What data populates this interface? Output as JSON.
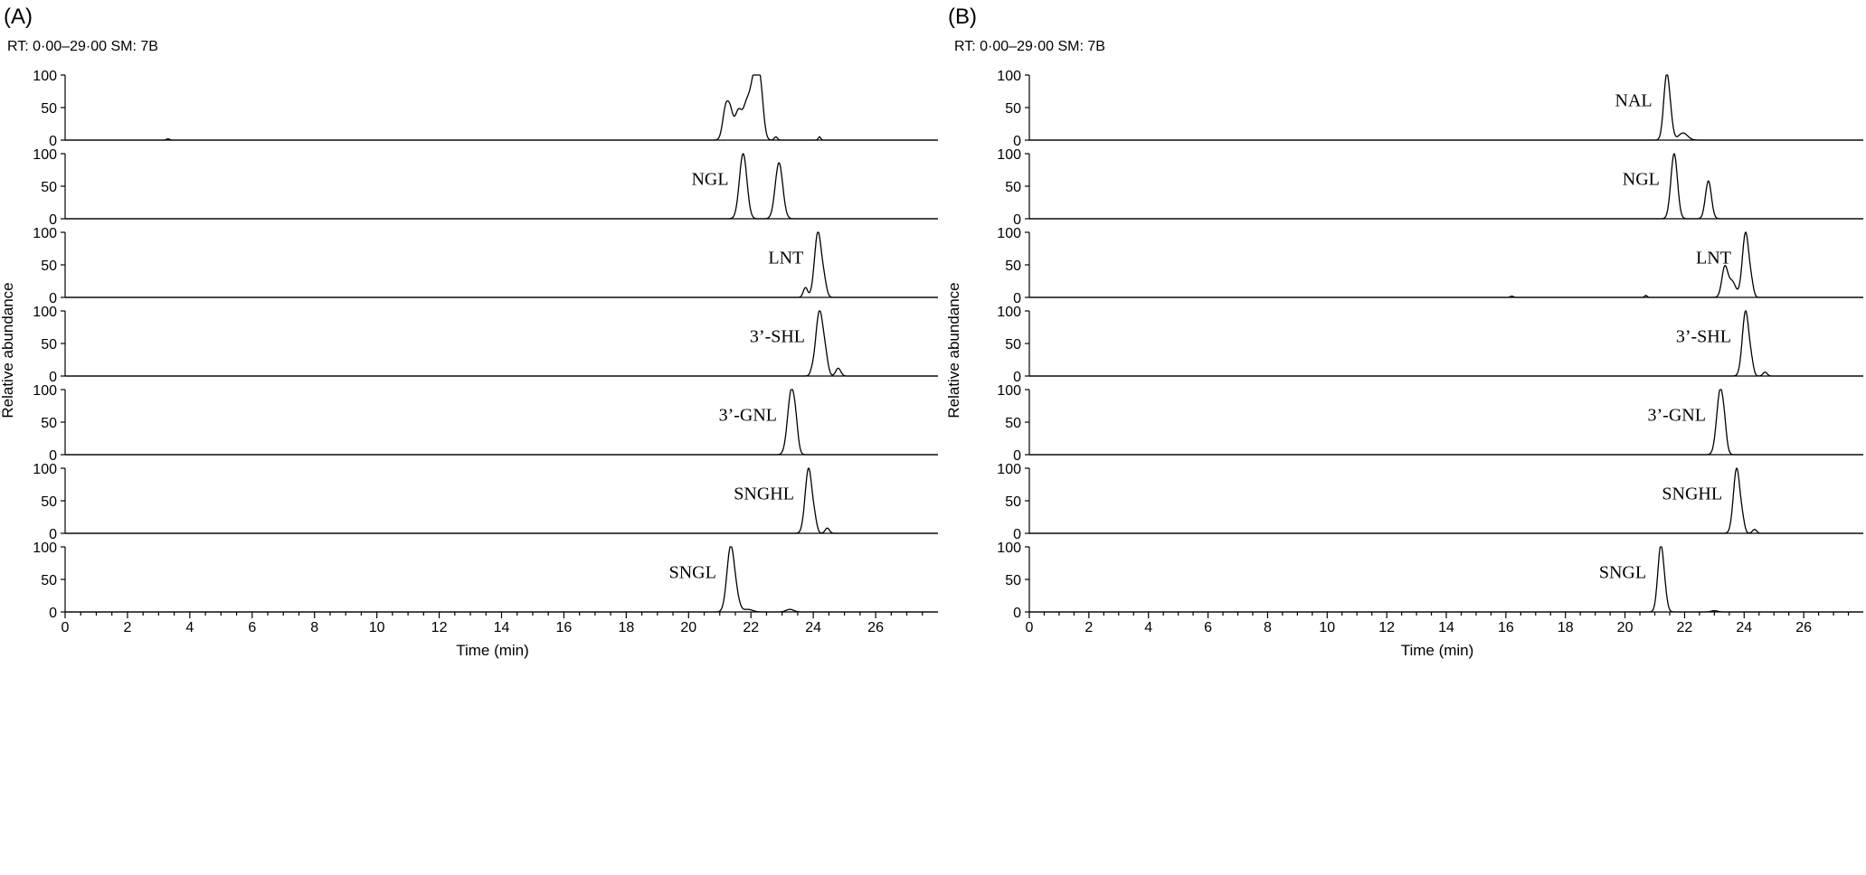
{
  "chart_data": [
    {
      "type": "line",
      "panel": "(A)",
      "info": "RT: 0·00–29·00   SM: 7B",
      "xlabel": "Time (min)",
      "ylabel": "Relative abundance",
      "xlim": [
        0,
        28
      ],
      "ylim": [
        0,
        100
      ],
      "x_ticks": [
        0,
        2,
        4,
        6,
        8,
        10,
        12,
        14,
        16,
        18,
        20,
        22,
        24,
        26
      ],
      "y_ticks": [
        0,
        50,
        100
      ],
      "traces": [
        {
          "label": "",
          "peaks": [
            [
              3.3,
              2,
              0.05
            ],
            [
              21.2,
              52,
              0.1
            ],
            [
              21.35,
              30,
              0.08
            ],
            [
              21.6,
              46,
              0.12
            ],
            [
              21.85,
              42,
              0.1
            ],
            [
              22.1,
              95,
              0.13
            ],
            [
              22.3,
              70,
              0.1
            ],
            [
              22.8,
              5,
              0.05
            ],
            [
              24.2,
              5,
              0.04
            ]
          ]
        },
        {
          "label": "NGL",
          "peaks": [
            [
              21.75,
              100,
              0.12
            ],
            [
              22.9,
              86,
              0.12
            ]
          ]
        },
        {
          "label": "LNT",
          "peaks": [
            [
              23.75,
              15,
              0.07
            ],
            [
              24.15,
              100,
              0.11
            ],
            [
              24.35,
              20,
              0.08
            ]
          ]
        },
        {
          "label": "3’-SHL",
          "peaks": [
            [
              23.95,
              4,
              0.05
            ],
            [
              24.2,
              100,
              0.12
            ],
            [
              24.4,
              20,
              0.08
            ],
            [
              24.8,
              12,
              0.08
            ]
          ]
        },
        {
          "label": "3’-GNL",
          "peaks": [
            [
              23.3,
              100,
              0.12
            ],
            [
              23.45,
              18,
              0.07
            ]
          ]
        },
        {
          "label": "SNGHL",
          "peaks": [
            [
              23.85,
              100,
              0.11
            ],
            [
              24.05,
              15,
              0.07
            ],
            [
              24.45,
              8,
              0.07
            ]
          ]
        },
        {
          "label": "SNGL",
          "peaks": [
            [
              21.35,
              100,
              0.12
            ],
            [
              21.55,
              15,
              0.1
            ],
            [
              21.9,
              4,
              0.15
            ],
            [
              23.25,
              4,
              0.12
            ]
          ]
        }
      ]
    },
    {
      "type": "line",
      "panel": "(B)",
      "info": "RT: 0·00–29·00   SM: 7B",
      "xlabel": "Time (min)",
      "ylabel": "Relative abundance",
      "xlim": [
        0,
        28
      ],
      "ylim": [
        0,
        100
      ],
      "x_ticks": [
        0,
        2,
        4,
        6,
        8,
        10,
        12,
        14,
        16,
        18,
        20,
        22,
        24,
        26
      ],
      "y_ticks": [
        0,
        50,
        100
      ],
      "traces": [
        {
          "label": "NAL",
          "peaks": [
            [
              21.4,
              100,
              0.1
            ],
            [
              21.55,
              15,
              0.08
            ],
            [
              21.95,
              11,
              0.15
            ]
          ]
        },
        {
          "label": "NGL",
          "peaks": [
            [
              21.65,
              100,
              0.11
            ],
            [
              22.8,
              58,
              0.1
            ]
          ]
        },
        {
          "label": "LNT",
          "peaks": [
            [
              16.2,
              2,
              0.05
            ],
            [
              20.7,
              3,
              0.04
            ],
            [
              23.35,
              46,
              0.1
            ],
            [
              23.6,
              24,
              0.12
            ],
            [
              24.05,
              100,
              0.11
            ],
            [
              24.25,
              15,
              0.07
            ]
          ]
        },
        {
          "label": "3’-SHL",
          "peaks": [
            [
              24.05,
              100,
              0.11
            ],
            [
              24.25,
              15,
              0.07
            ],
            [
              24.7,
              6,
              0.07
            ]
          ]
        },
        {
          "label": "3’-GNL",
          "peaks": [
            [
              23.2,
              100,
              0.12
            ],
            [
              23.35,
              15,
              0.07
            ]
          ]
        },
        {
          "label": "SNGHL",
          "peaks": [
            [
              23.75,
              100,
              0.11
            ],
            [
              23.95,
              14,
              0.07
            ],
            [
              24.35,
              6,
              0.07
            ]
          ]
        },
        {
          "label": "SNGL",
          "peaks": [
            [
              21.2,
              100,
              0.1
            ],
            [
              21.35,
              15,
              0.08
            ],
            [
              23.0,
              2,
              0.1
            ]
          ]
        }
      ]
    }
  ]
}
